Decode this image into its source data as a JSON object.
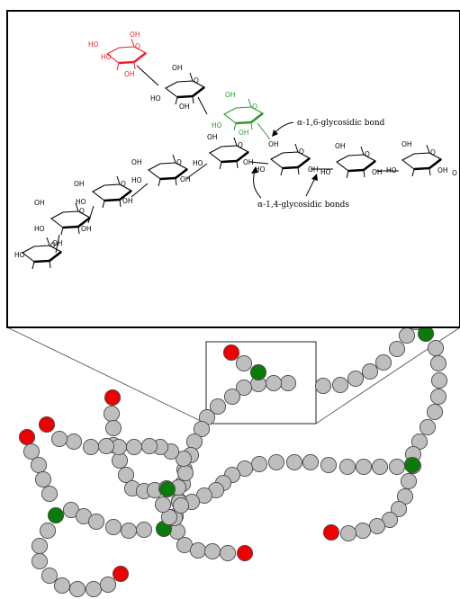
{
  "annotations": {
    "alpha16": "α-1,6-glycosidic bond",
    "alpha14": "α-1,4-glycosidic bonds"
  },
  "colors": {
    "plain_unit": "#bebebe",
    "nonreducing_end": "#ee0000",
    "branch_point": "#0a7a0a",
    "red_structure": "#e8232a",
    "green_structure": "#2b9a2b"
  },
  "atom_labels": {
    "oh": "OH",
    "ho": "HO",
    "o": "O"
  }
}
